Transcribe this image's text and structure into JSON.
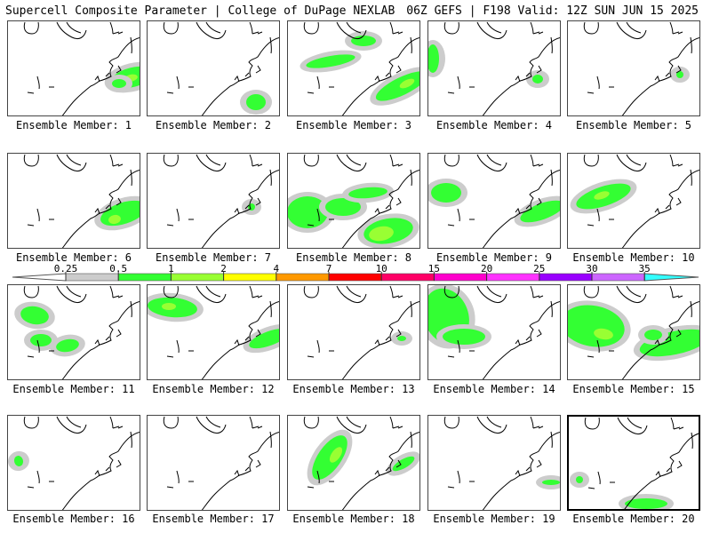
{
  "header": {
    "title": "Supercell Composite Parameter | College of DuPage NEXLAB",
    "valid": "06Z GEFS | F198 Valid: 12Z SUN JUN 15 2025"
  },
  "colorbar": {
    "labels": [
      "0.25",
      "0.5",
      "1",
      "2",
      "4",
      "7",
      "10",
      "15",
      "20",
      "25",
      "30",
      "35"
    ],
    "colors": [
      "#cccccc",
      "#33ff33",
      "#99ff33",
      "#ffff00",
      "#ff9900",
      "#ff0000",
      "#ff0066",
      "#ff00cc",
      "#ff33ff",
      "#9900ff",
      "#cc66ff",
      "#33ffff"
    ]
  },
  "members": [
    {
      "label": "Ensemble Member: 1"
    },
    {
      "label": "Ensemble Member: 2"
    },
    {
      "label": "Ensemble Member: 3"
    },
    {
      "label": "Ensemble Member: 4"
    },
    {
      "label": "Ensemble Member: 5"
    },
    {
      "label": "Ensemble Member: 6"
    },
    {
      "label": "Ensemble Member: 7"
    },
    {
      "label": "Ensemble Member: 8"
    },
    {
      "label": "Ensemble Member: 9"
    },
    {
      "label": "Ensemble Member: 10"
    },
    {
      "label": "Ensemble Member: 11"
    },
    {
      "label": "Ensemble Member: 12"
    },
    {
      "label": "Ensemble Member: 13"
    },
    {
      "label": "Ensemble Member: 14"
    },
    {
      "label": "Ensemble Member: 15"
    },
    {
      "label": "Ensemble Member: 16"
    },
    {
      "label": "Ensemble Member: 17"
    },
    {
      "label": "Ensemble Member: 18"
    },
    {
      "label": "Ensemble Member: 19"
    },
    {
      "label": "Ensemble Member: 20"
    }
  ],
  "selected_member": "Ensemble Member: 20"
}
